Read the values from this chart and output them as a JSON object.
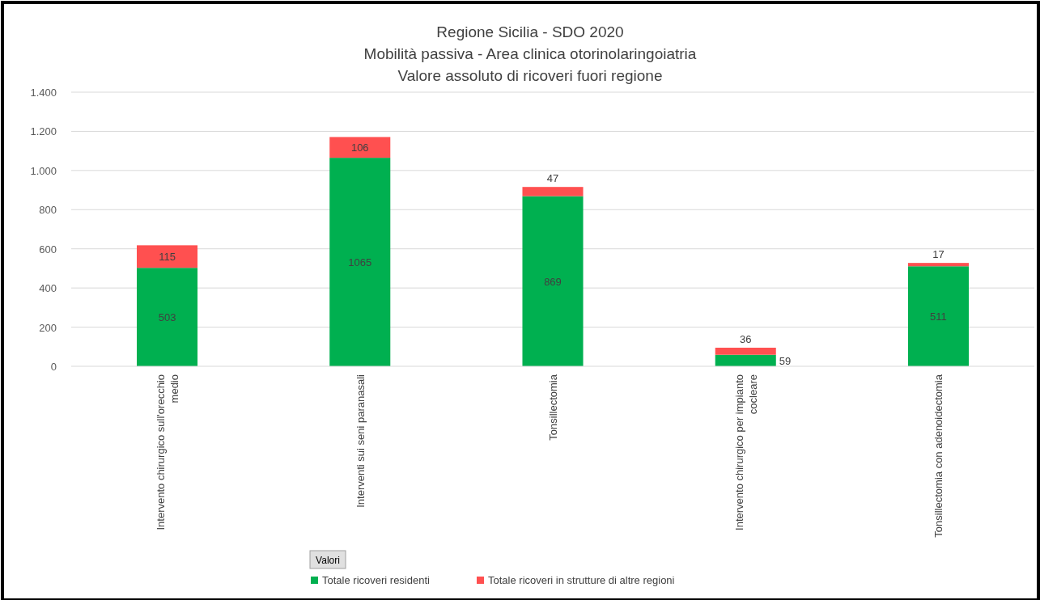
{
  "chart_data": {
    "type": "bar",
    "title": "Regione Sicilia - SDO 2020",
    "subtitle": "Mobilità passiva - Area clinica otorinolaringoiatria\nValore assoluto di ricoveri fuori regione",
    "categories": [
      "Intervento chirurgico sull'orecchio medio",
      "Interventi sui seni paranasali",
      "Tonsillectomia",
      "Intervento chirurgico per impianto cocleare",
      "Tonsillectomia con adenoidectomia"
    ],
    "series": [
      {
        "name": "Totale ricoveri residenti",
        "color": "#00b050",
        "values": [
          503,
          1065,
          869,
          59,
          511
        ]
      },
      {
        "name": "Totale ricoveri in strutture di altre regioni",
        "color": "#ff5050",
        "values": [
          115,
          106,
          47,
          36,
          17
        ]
      }
    ],
    "stacked": true,
    "data_labels": true,
    "ylim": [
      0,
      1400
    ],
    "yticks": [
      0,
      200,
      400,
      600,
      800,
      {
        "value": 1000,
        "label": "1.000"
      },
      {
        "value": 1200,
        "label": "1.200"
      },
      {
        "value": 1400,
        "label": "1.400"
      }
    ],
    "grid": "y",
    "legend": "bottom",
    "annotations": [
      "Valori"
    ]
  }
}
